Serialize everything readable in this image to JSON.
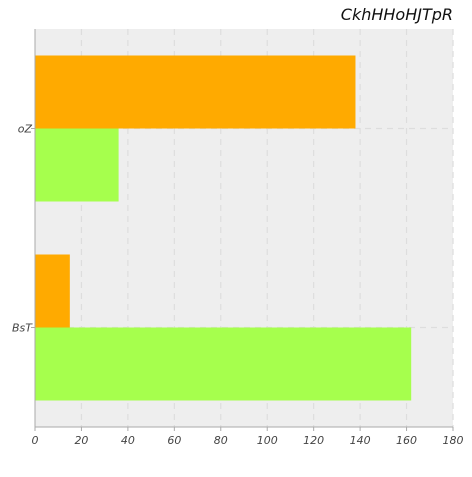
{
  "chart_data": {
    "type": "bar",
    "orientation": "horizontal",
    "title": "CkhHHoHJTpR",
    "xlabel": "",
    "ylabel": "",
    "categories": [
      "oZ",
      "BsT"
    ],
    "series": [
      {
        "color": "#FFAA00",
        "values": [
          138,
          15
        ]
      },
      {
        "color": "#A6FF4D",
        "values": [
          36,
          162
        ]
      }
    ],
    "xlim": [
      0,
      180
    ],
    "xticks": [
      0,
      20,
      40,
      60,
      80,
      100,
      120,
      140,
      160,
      180
    ],
    "grid": true,
    "legend": "none"
  },
  "style": {
    "plot_background": "#EEEEEE",
    "grid_color": "#DDDDDD",
    "axis_color": "#AAAAAA"
  }
}
